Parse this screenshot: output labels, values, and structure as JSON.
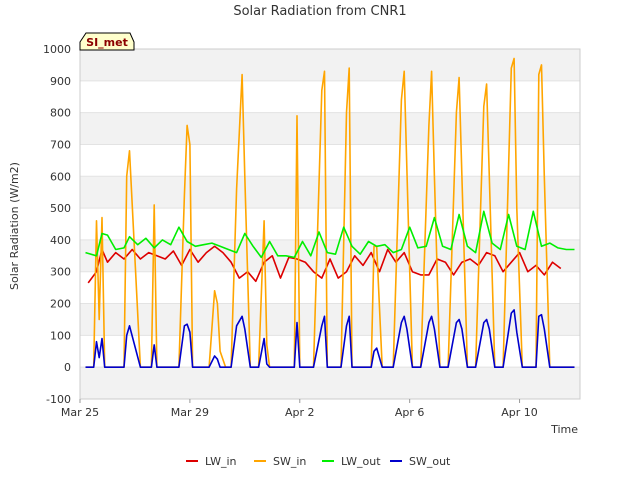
{
  "chart_data": {
    "type": "line",
    "title": "Solar Radiation from CNR1",
    "xlabel": "Time",
    "ylabel": "Solar Radiation (W/m2)",
    "badge": "SI_met",
    "ylim": [
      -100,
      1000
    ],
    "yticks": [
      -100,
      0,
      100,
      200,
      300,
      400,
      500,
      600,
      700,
      800,
      900,
      1000
    ],
    "xlim_days": [
      0,
      18.2
    ],
    "xticks": [
      {
        "label": "Mar 25",
        "day": 0
      },
      {
        "label": "Mar 29",
        "day": 4
      },
      {
        "label": "Apr 2",
        "day": 8
      },
      {
        "label": "Apr 6",
        "day": 12
      },
      {
        "label": "Apr 10",
        "day": 16
      }
    ],
    "grid": true,
    "legend_position": "bottom-center",
    "series": [
      {
        "name": "LW_in",
        "color": "#dd0000",
        "x": [
          0.3,
          0.6,
          0.8,
          1,
          1.3,
          1.6,
          1.9,
          2.2,
          2.5,
          2.8,
          3.1,
          3.4,
          3.7,
          4,
          4.3,
          4.6,
          4.9,
          5.2,
          5.5,
          5.8,
          6.1,
          6.4,
          6.7,
          7,
          7.3,
          7.6,
          7.9,
          8.2,
          8.5,
          8.8,
          9.1,
          9.4,
          9.7,
          10,
          10.3,
          10.6,
          10.9,
          11.2,
          11.5,
          11.8,
          12.1,
          12.4,
          12.7,
          13,
          13.3,
          13.6,
          13.9,
          14.2,
          14.5,
          14.8,
          15.1,
          15.4,
          15.7,
          16,
          16.3,
          16.6,
          16.9,
          17.2,
          17.5
        ],
        "y": [
          265,
          300,
          370,
          330,
          360,
          340,
          370,
          340,
          360,
          350,
          340,
          365,
          320,
          370,
          330,
          360,
          380,
          360,
          330,
          280,
          300,
          270,
          330,
          350,
          280,
          345,
          340,
          330,
          300,
          280,
          340,
          280,
          300,
          350,
          320,
          360,
          300,
          370,
          330,
          360,
          300,
          290,
          290,
          340,
          330,
          290,
          330,
          340,
          320,
          360,
          350,
          300,
          330,
          360,
          300,
          320,
          290,
          330,
          310
        ]
      },
      {
        "name": "SW_in",
        "color": "#ffa500",
        "x": [
          0.2,
          0.5,
          0.6,
          0.7,
          0.8,
          0.9,
          1.2,
          1.6,
          1.7,
          1.8,
          2.2,
          2.6,
          2.7,
          2.8,
          3.2,
          3.6,
          3.8,
          3.9,
          4.0,
          4.1,
          4.3,
          4.7,
          4.9,
          5.0,
          5.1,
          5.3,
          5.5,
          5.7,
          5.9,
          6.0,
          6.2,
          6.5,
          6.7,
          6.8,
          6.9,
          7.2,
          7.5,
          7.8,
          7.9,
          8.0,
          8.2,
          8.5,
          8.8,
          8.9,
          9.0,
          9.2,
          9.5,
          9.7,
          9.8,
          9.9,
          10.1,
          10.4,
          10.6,
          10.7,
          10.8,
          11.0,
          11.2,
          11.4,
          11.7,
          11.8,
          11.9,
          12.1,
          12.4,
          12.7,
          12.8,
          12.9,
          13.1,
          13.4,
          13.7,
          13.8,
          13.9,
          14.1,
          14.4,
          14.7,
          14.8,
          14.9,
          15.1,
          15.4,
          15.7,
          15.8,
          15.9,
          16.1,
          16.4,
          16.6,
          16.7,
          16.8,
          16.9,
          17.1,
          17.4,
          17.5,
          17.6,
          17.8,
          18.0
        ],
        "y": [
          0,
          0,
          460,
          150,
          470,
          0,
          0,
          0,
          600,
          680,
          0,
          0,
          510,
          0,
          0,
          0,
          540,
          760,
          700,
          0,
          0,
          0,
          240,
          200,
          50,
          0,
          0,
          560,
          920,
          600,
          0,
          0,
          460,
          70,
          0,
          0,
          0,
          0,
          790,
          0,
          0,
          0,
          870,
          930,
          0,
          0,
          0,
          800,
          940,
          0,
          0,
          0,
          0,
          380,
          380,
          0,
          0,
          0,
          840,
          930,
          620,
          0,
          0,
          760,
          930,
          600,
          0,
          0,
          800,
          910,
          600,
          0,
          0,
          820,
          890,
          600,
          0,
          0,
          940,
          970,
          500,
          0,
          0,
          0,
          920,
          950,
          600,
          0,
          0,
          0,
          0,
          0,
          0
        ]
      },
      {
        "name": "LW_out",
        "color": "#00ee00",
        "x": [
          0.2,
          0.6,
          0.8,
          1,
          1.3,
          1.6,
          1.8,
          2.1,
          2.4,
          2.7,
          3,
          3.3,
          3.6,
          3.9,
          4.2,
          4.5,
          4.8,
          5.1,
          5.4,
          5.7,
          6,
          6.3,
          6.6,
          6.9,
          7.2,
          7.5,
          7.8,
          8.1,
          8.4,
          8.7,
          9,
          9.3,
          9.6,
          9.9,
          10.2,
          10.5,
          10.8,
          11.1,
          11.4,
          11.7,
          12,
          12.3,
          12.6,
          12.9,
          13.2,
          13.5,
          13.8,
          14.1,
          14.4,
          14.7,
          15,
          15.3,
          15.6,
          15.9,
          16.2,
          16.5,
          16.8,
          17.1,
          17.4,
          17.7,
          18
        ],
        "y": [
          360,
          350,
          420,
          415,
          370,
          375,
          410,
          385,
          405,
          375,
          400,
          385,
          440,
          395,
          380,
          385,
          390,
          380,
          370,
          360,
          420,
          380,
          345,
          395,
          350,
          350,
          345,
          395,
          350,
          425,
          360,
          355,
          440,
          380,
          355,
          395,
          380,
          385,
          360,
          370,
          440,
          375,
          380,
          470,
          380,
          370,
          480,
          380,
          360,
          490,
          390,
          370,
          480,
          380,
          370,
          490,
          380,
          390,
          375,
          370,
          370
        ]
      },
      {
        "name": "SW_out",
        "color": "#0000cc",
        "x": [
          0.2,
          0.5,
          0.6,
          0.7,
          0.8,
          0.9,
          1.2,
          1.6,
          1.7,
          1.8,
          2.2,
          2.6,
          2.7,
          2.8,
          3.2,
          3.6,
          3.8,
          3.9,
          4.0,
          4.1,
          4.3,
          4.7,
          4.9,
          5.0,
          5.1,
          5.3,
          5.5,
          5.7,
          5.9,
          6.0,
          6.2,
          6.5,
          6.7,
          6.8,
          6.9,
          7.2,
          7.5,
          7.8,
          7.9,
          8.0,
          8.2,
          8.5,
          8.8,
          8.9,
          9.0,
          9.2,
          9.5,
          9.7,
          9.8,
          9.9,
          10.1,
          10.4,
          10.6,
          10.7,
          10.8,
          11.0,
          11.2,
          11.4,
          11.7,
          11.8,
          11.9,
          12.1,
          12.4,
          12.7,
          12.8,
          12.9,
          13.1,
          13.4,
          13.7,
          13.8,
          13.9,
          14.1,
          14.4,
          14.7,
          14.8,
          14.9,
          15.1,
          15.4,
          15.7,
          15.8,
          15.9,
          16.1,
          16.4,
          16.6,
          16.7,
          16.8,
          16.9,
          17.1,
          17.4,
          17.5,
          17.6,
          17.8,
          18.0
        ],
        "y": [
          0,
          0,
          80,
          30,
          90,
          0,
          0,
          0,
          100,
          130,
          0,
          0,
          70,
          0,
          0,
          0,
          130,
          135,
          110,
          0,
          0,
          0,
          35,
          25,
          0,
          0,
          0,
          130,
          160,
          120,
          0,
          0,
          90,
          10,
          0,
          0,
          0,
          0,
          140,
          0,
          0,
          0,
          130,
          160,
          0,
          0,
          0,
          130,
          160,
          0,
          0,
          0,
          0,
          50,
          60,
          0,
          0,
          0,
          140,
          160,
          120,
          0,
          0,
          140,
          160,
          120,
          0,
          0,
          140,
          150,
          120,
          0,
          0,
          140,
          150,
          120,
          0,
          0,
          170,
          180,
          110,
          0,
          0,
          0,
          160,
          165,
          120,
          0,
          0,
          0,
          0,
          0,
          0
        ]
      }
    ]
  }
}
